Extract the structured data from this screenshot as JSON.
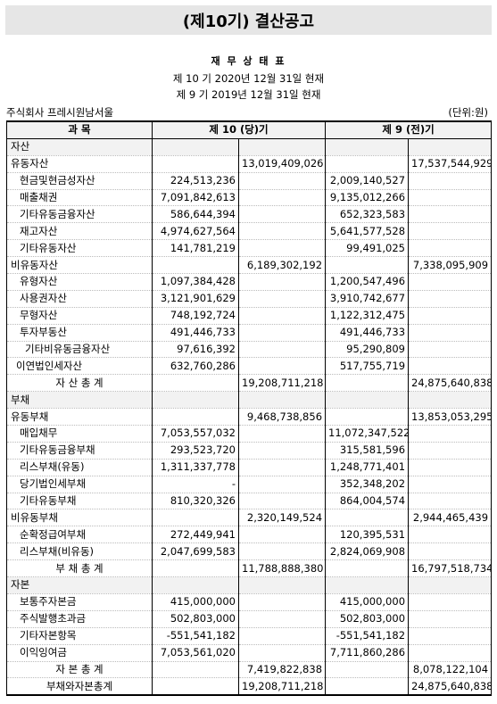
{
  "header": {
    "title": "(제10기) 결산공고",
    "statement_name": "재 무 상 태 표",
    "period_current": "제 10 기  2020년 12월 31일 현재",
    "period_prior": "제 9 기  2019년 12월 31일 현재",
    "company": "주식회사 프레시원남서울",
    "unit": "(단위:원)"
  },
  "table": {
    "headers": {
      "account": "과          목",
      "current": "제 10 (당)기",
      "prior": "제 9 (전)기"
    },
    "rows": [
      {
        "label": "자산",
        "kind": "section",
        "c1": "",
        "c2": "",
        "p1": "",
        "p2": ""
      },
      {
        "label": "유동자산",
        "kind": "l1",
        "c1": "",
        "c2": "13,019,409,026",
        "p1": "",
        "p2": "17,537,544,929"
      },
      {
        "label": "현금및현금성자산",
        "kind": "l3",
        "c1": "224,513,236",
        "c2": "",
        "p1": "2,009,140,527",
        "p2": ""
      },
      {
        "label": "매출채권",
        "kind": "l3",
        "c1": "7,091,842,613",
        "c2": "",
        "p1": "9,135,012,266",
        "p2": ""
      },
      {
        "label": "기타유동금융자산",
        "kind": "l3",
        "c1": "586,644,394",
        "c2": "",
        "p1": "652,323,583",
        "p2": ""
      },
      {
        "label": "재고자산",
        "kind": "l3",
        "c1": "4,974,627,564",
        "c2": "",
        "p1": "5,641,577,528",
        "p2": ""
      },
      {
        "label": "기타유동자산",
        "kind": "l3",
        "c1": "141,781,219",
        "c2": "",
        "p1": "99,491,025",
        "p2": ""
      },
      {
        "label": "비유동자산",
        "kind": "l1",
        "c1": "",
        "c2": "6,189,302,192",
        "p1": "",
        "p2": "7,338,095,909"
      },
      {
        "label": "유형자산",
        "kind": "l3",
        "c1": "1,097,384,428",
        "c2": "",
        "p1": "1,200,547,496",
        "p2": ""
      },
      {
        "label": "사용권자산",
        "kind": "l3",
        "c1": "3,121,901,629",
        "c2": "",
        "p1": "3,910,742,677",
        "p2": ""
      },
      {
        "label": "무형자산",
        "kind": "l3",
        "c1": "748,192,724",
        "c2": "",
        "p1": "1,122,312,475",
        "p2": ""
      },
      {
        "label": "투자부동산",
        "kind": "l3",
        "c1": "491,446,733",
        "c2": "",
        "p1": "491,446,733",
        "p2": ""
      },
      {
        "label": "기타비유동금융자산",
        "kind": "l4",
        "c1": "97,616,392",
        "c2": "",
        "p1": "95,290,809",
        "p2": ""
      },
      {
        "label": "이연법인세자산",
        "kind": "l2",
        "c1": "632,760,286",
        "c2": "",
        "p1": "517,755,719",
        "p2": ""
      },
      {
        "label": "자   산   총   계",
        "kind": "total",
        "c1": "",
        "c2": "19,208,711,218",
        "p1": "",
        "p2": "24,875,640,838"
      },
      {
        "label": "부채",
        "kind": "section",
        "c1": "",
        "c2": "",
        "p1": "",
        "p2": ""
      },
      {
        "label": "유동부채",
        "kind": "l1",
        "c1": "",
        "c2": "9,468,738,856",
        "p1": "",
        "p2": "13,853,053,295"
      },
      {
        "label": "매입채무",
        "kind": "l3",
        "c1": "7,053,557,032",
        "c2": "",
        "p1": "11,072,347,522",
        "p2": ""
      },
      {
        "label": "기타유동금융부채",
        "kind": "l3",
        "c1": "293,523,720",
        "c2": "",
        "p1": "315,581,596",
        "p2": ""
      },
      {
        "label": "리스부채(유동)",
        "kind": "l3",
        "c1": "1,311,337,778",
        "c2": "",
        "p1": "1,248,771,401",
        "p2": ""
      },
      {
        "label": "당기법인세부채",
        "kind": "l3",
        "c1": "-",
        "c2": "",
        "p1": "352,348,202",
        "p2": ""
      },
      {
        "label": "기타유동부채",
        "kind": "l3",
        "c1": "810,320,326",
        "c2": "",
        "p1": "864,004,574",
        "p2": ""
      },
      {
        "label": "비유동부채",
        "kind": "l1",
        "c1": "",
        "c2": "2,320,149,524",
        "p1": "",
        "p2": "2,944,465,439"
      },
      {
        "label": "순확정급여부채",
        "kind": "l3",
        "c1": "272,449,941",
        "c2": "",
        "p1": "120,395,531",
        "p2": ""
      },
      {
        "label": "리스부채(비유동)",
        "kind": "l3",
        "c1": "2,047,699,583",
        "c2": "",
        "p1": "2,824,069,908",
        "p2": ""
      },
      {
        "label": "부   채   총   계",
        "kind": "total",
        "c1": "",
        "c2": "11,788,888,380",
        "p1": "",
        "p2": "16,797,518,734"
      },
      {
        "label": "자본",
        "kind": "section",
        "c1": "",
        "c2": "",
        "p1": "",
        "p2": ""
      },
      {
        "label": "보통주자본금",
        "kind": "l3",
        "c1": "415,000,000",
        "c2": "",
        "p1": "415,000,000",
        "p2": ""
      },
      {
        "label": "주식발행초과금",
        "kind": "l3",
        "c1": "502,803,000",
        "c2": "",
        "p1": "502,803,000",
        "p2": ""
      },
      {
        "label": "기타자본항목",
        "kind": "l3",
        "c1": "-551,541,182",
        "c2": "",
        "p1": "-551,541,182",
        "p2": ""
      },
      {
        "label": "이익잉여금",
        "kind": "l3",
        "c1": "7,053,561,020",
        "c2": "",
        "p1": "7,711,860,286",
        "p2": ""
      },
      {
        "label": "자   본   총   계",
        "kind": "total",
        "c1": "",
        "c2": "7,419,822,838",
        "p1": "",
        "p2": "8,078,122,104"
      },
      {
        "label": "부채와자본총계",
        "kind": "total",
        "c1": "",
        "c2": "19,208,711,218",
        "p1": "",
        "p2": "24,875,640,838"
      }
    ]
  }
}
